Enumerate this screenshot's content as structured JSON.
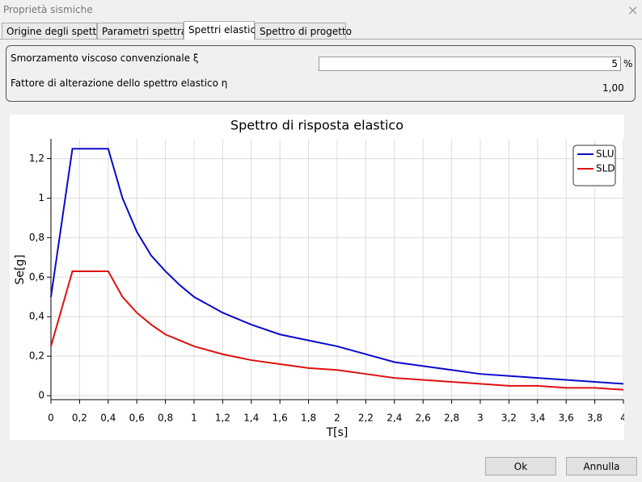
{
  "window": {
    "title": "Proprietà sismiche",
    "close": "×"
  },
  "tabs": [
    "Origine degli spettri",
    "Parametri spettrali",
    "Spettri elastici",
    "Spettro di progetto"
  ],
  "selected_tab": 2,
  "fields": {
    "damping_label": "Smorzamento viscoso convenzionale ξ",
    "damping_value": "5",
    "damping_unit": "%",
    "factor_label": "Fattore di alterazione dello spettro elastico η",
    "factor_value": "1,00"
  },
  "chart_data": {
    "type": "line",
    "title": "Spettro di risposta elastico",
    "x_label": "T[s]",
    "y_label": "Se[g]",
    "x": [
      0,
      0.15,
      0.4,
      0.5,
      0.6,
      0.7,
      0.8,
      0.9,
      1,
      1.2,
      1.4,
      1.6,
      1.8,
      2,
      2.2,
      2.4,
      2.6,
      2.8,
      3,
      3.2,
      3.4,
      3.6,
      3.8,
      4
    ],
    "series": [
      {
        "name": "SLU",
        "color": "#0a0acc",
        "values": [
          0.5,
          1.25,
          1.25,
          1.0,
          0.83,
          0.71,
          0.63,
          0.56,
          0.5,
          0.42,
          0.36,
          0.31,
          0.28,
          0.25,
          0.21,
          0.17,
          0.15,
          0.13,
          0.11,
          0.1,
          0.09,
          0.08,
          0.07,
          0.06
        ]
      },
      {
        "name": "SLD",
        "color": "#dd1111",
        "values": [
          0.25,
          0.63,
          0.63,
          0.5,
          0.42,
          0.36,
          0.31,
          0.28,
          0.25,
          0.21,
          0.18,
          0.16,
          0.14,
          0.13,
          0.11,
          0.09,
          0.08,
          0.07,
          0.06,
          0.05,
          0.05,
          0.04,
          0.04,
          0.03
        ]
      }
    ],
    "xlim": [
      0,
      4
    ],
    "ylim": [
      -0.02,
      1.3
    ],
    "xticks": [
      0,
      {
        "value": 0.2,
        "label": "0,2"
      },
      {
        "value": 0.4,
        "label": "0,4"
      },
      {
        "value": 0.6,
        "label": "0,6"
      },
      {
        "value": 0.8,
        "label": "0,8"
      },
      1,
      {
        "value": 1.2,
        "label": "1,2"
      },
      {
        "value": 1.4,
        "label": "1,4"
      },
      {
        "value": 1.6,
        "label": "1,6"
      },
      {
        "value": 1.8,
        "label": "1,8"
      },
      2,
      {
        "value": 2.2,
        "label": "2,2"
      },
      {
        "value": 2.4,
        "label": "2,4"
      },
      {
        "value": 2.6,
        "label": "2,6"
      },
      {
        "value": 2.8,
        "label": "2,8"
      },
      3,
      {
        "value": 3.2,
        "label": "3,2"
      },
      {
        "value": 3.4,
        "label": "3,4"
      },
      {
        "value": 3.6,
        "label": "3,6"
      },
      {
        "value": 3.8,
        "label": "3,8"
      },
      4
    ],
    "yticks": [
      0,
      {
        "value": 0.2,
        "label": "0,2"
      },
      {
        "value": 0.4,
        "label": "0,4"
      },
      {
        "value": 0.6,
        "label": "0,6"
      },
      {
        "value": 0.8,
        "label": "0,8"
      },
      1,
      {
        "value": 1.2,
        "label": "1,2"
      }
    ],
    "grid": true,
    "legend": "upper right"
  },
  "buttons": [
    "Ok",
    "Annulla"
  ]
}
